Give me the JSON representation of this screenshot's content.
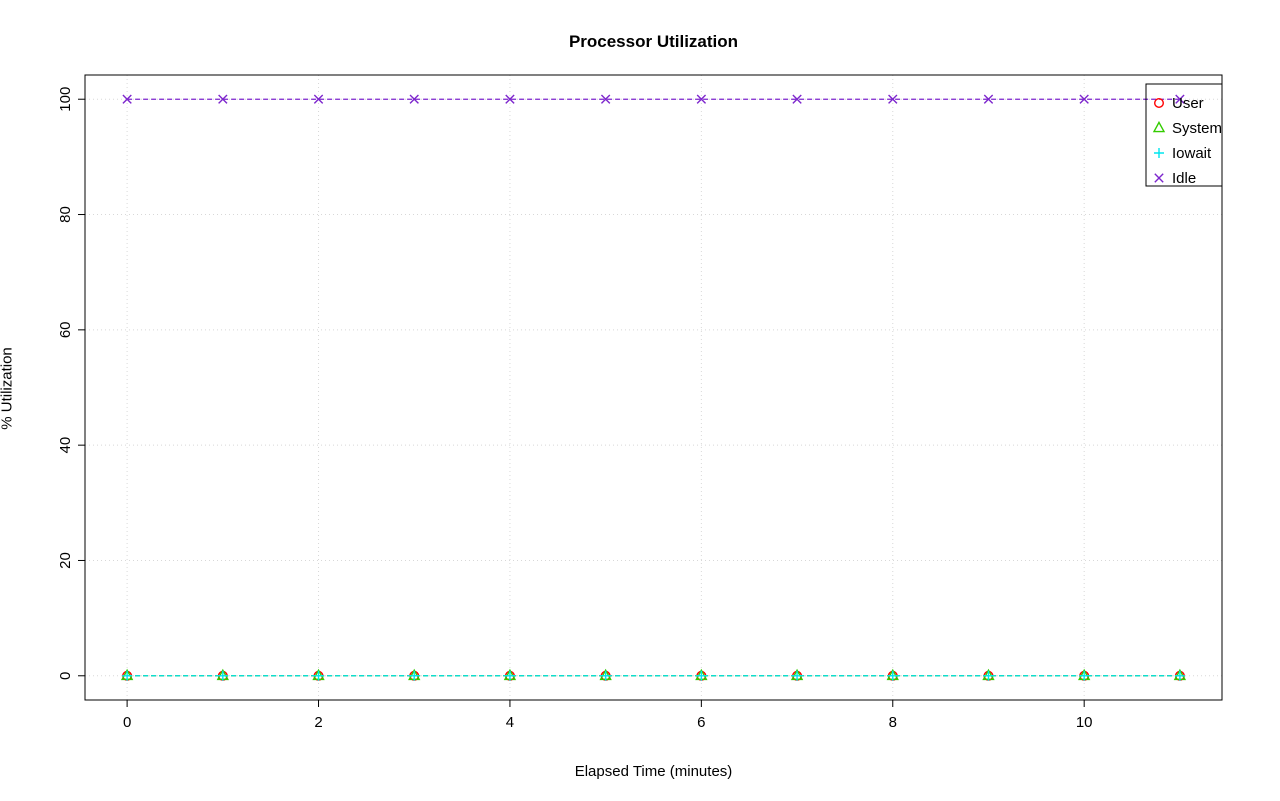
{
  "chart_data": {
    "type": "line",
    "title": "Processor Utilization",
    "xlabel": "Elapsed Time (minutes)",
    "ylabel": "% Utilization",
    "x": [
      0,
      1,
      2,
      3,
      4,
      5,
      6,
      7,
      8,
      9,
      10,
      11
    ],
    "series": [
      {
        "name": "User",
        "values": [
          0,
          0,
          0,
          0,
          0,
          0,
          0,
          0,
          0,
          0,
          0,
          0
        ],
        "color": "#FF0000",
        "marker": "circle"
      },
      {
        "name": "System",
        "values": [
          0,
          0,
          0,
          0,
          0,
          0,
          0,
          0,
          0,
          0,
          0,
          0
        ],
        "color": "#33CC00",
        "marker": "triangle"
      },
      {
        "name": "Iowait",
        "values": [
          0,
          0,
          0,
          0,
          0,
          0,
          0,
          0,
          0,
          0,
          0,
          0
        ],
        "color": "#00E5EE",
        "marker": "plus"
      },
      {
        "name": "Idle",
        "values": [
          100,
          100,
          100,
          100,
          100,
          100,
          100,
          100,
          100,
          100,
          100,
          100
        ],
        "color": "#7D26CD",
        "marker": "x"
      }
    ],
    "xticks": [
      0,
      2,
      4,
      6,
      8,
      10
    ],
    "yticks": [
      0,
      20,
      40,
      60,
      80,
      100
    ],
    "xlim": [
      -0.44,
      11.44
    ],
    "ylim": [
      -4.2,
      104.2
    ],
    "grid": true,
    "grid_color": "#D8D8D8",
    "line_style": "dashed",
    "legend_position": "top-right",
    "legend_labels": [
      "User",
      "System",
      "Iowait",
      "Idle"
    ]
  }
}
